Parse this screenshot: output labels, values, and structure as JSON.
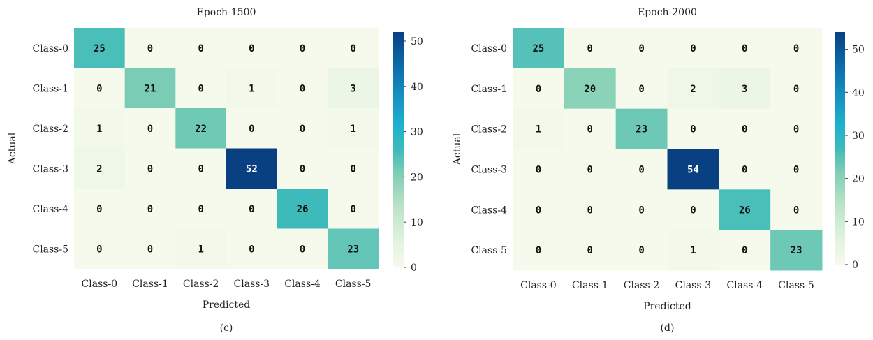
{
  "chart_data": [
    {
      "type": "heatmap",
      "title": "Epoch-1500",
      "panel_label": "(c)",
      "xlabel": "Predicted",
      "ylabel": "Actual",
      "x_categories": [
        "Class-0",
        "Class-1",
        "Class-2",
        "Class-3",
        "Class-4",
        "Class-5"
      ],
      "y_categories": [
        "Class-0",
        "Class-1",
        "Class-2",
        "Class-3",
        "Class-4",
        "Class-5"
      ],
      "values": [
        [
          25,
          0,
          0,
          0,
          0,
          0
        ],
        [
          0,
          21,
          0,
          1,
          0,
          3
        ],
        [
          1,
          0,
          22,
          0,
          0,
          1
        ],
        [
          2,
          0,
          0,
          52,
          0,
          0
        ],
        [
          0,
          0,
          0,
          0,
          26,
          0
        ],
        [
          0,
          0,
          1,
          0,
          0,
          23
        ]
      ],
      "colorbar": {
        "range": [
          0,
          52
        ],
        "ticks": [
          0,
          10,
          20,
          30,
          40,
          50
        ],
        "colormap": "GnBu"
      }
    },
    {
      "type": "heatmap",
      "title": "Epoch-2000",
      "panel_label": "(d)",
      "xlabel": "Predicted",
      "ylabel": "Actual",
      "x_categories": [
        "Class-0",
        "Class-1",
        "Class-2",
        "Class-3",
        "Class-4",
        "Class-5"
      ],
      "y_categories": [
        "Class-0",
        "Class-1",
        "Class-2",
        "Class-3",
        "Class-4",
        "Class-5"
      ],
      "values": [
        [
          25,
          0,
          0,
          0,
          0,
          0
        ],
        [
          0,
          20,
          0,
          2,
          3,
          0
        ],
        [
          1,
          0,
          23,
          0,
          0,
          0
        ],
        [
          0,
          0,
          0,
          54,
          0,
          0
        ],
        [
          0,
          0,
          0,
          0,
          26,
          0
        ],
        [
          0,
          0,
          0,
          1,
          0,
          23
        ]
      ],
      "colorbar": {
        "range": [
          0,
          54
        ],
        "ticks": [
          0,
          10,
          20,
          30,
          40,
          50
        ],
        "colormap": "GnBu"
      }
    }
  ]
}
